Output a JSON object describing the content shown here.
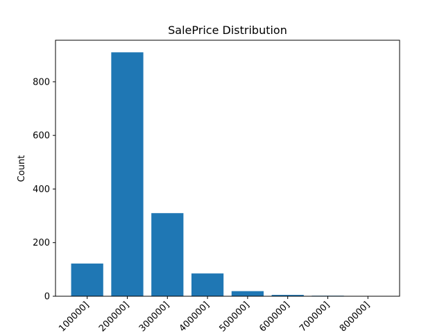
{
  "chart_data": {
    "type": "bar",
    "title": "SalePrice Distribution",
    "xlabel": "",
    "ylabel": "Count",
    "categories": [
      "100000]",
      "200000]",
      "300000]",
      "400000]",
      "500000]",
      "600000]",
      "700000]",
      "800000]"
    ],
    "values": [
      122,
      910,
      310,
      85,
      19,
      5,
      2,
      1
    ],
    "ylim": [
      0,
      955
    ],
    "yticks": [
      0,
      200,
      400,
      600,
      800
    ],
    "grid": false,
    "bar_color": "#1f77b4"
  }
}
